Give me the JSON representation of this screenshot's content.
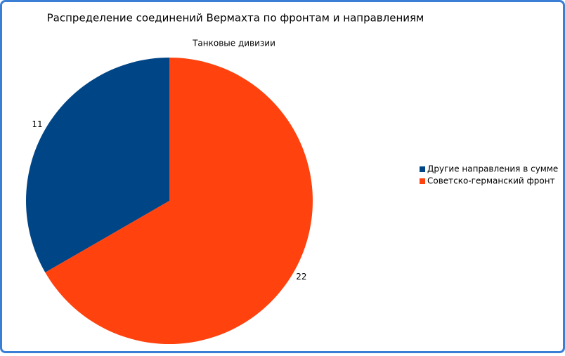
{
  "chart_data": {
    "type": "pie",
    "title": "Распределение соединений Вермахта по фронтам и направлениям",
    "subtitle": "Танковые дивизии",
    "categories": [
      "Другие направления в сумме",
      "Советско-германский фронт"
    ],
    "values": [
      11,
      22
    ],
    "colors": [
      "#004586",
      "#ff420e"
    ]
  }
}
